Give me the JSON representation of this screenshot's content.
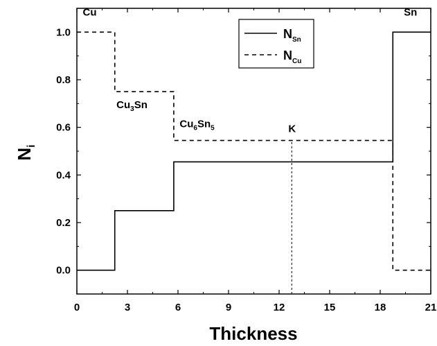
{
  "chart_data": {
    "type": "line",
    "xlabel": "Thickness",
    "ylabel": {
      "main": "N",
      "sub": "i"
    },
    "xlim": [
      0,
      21
    ],
    "ylim": [
      -0.1,
      1.1
    ],
    "xticks": [
      0,
      3,
      6,
      9,
      12,
      15,
      18,
      21
    ],
    "xtick_labels": [
      "0",
      "3",
      "6",
      "9",
      "12",
      "15",
      "18",
      "21"
    ],
    "yticks": [
      0.0,
      0.2,
      0.4,
      0.6,
      0.8,
      1.0
    ],
    "ytick_labels": [
      "0.0",
      "0.2",
      "0.4",
      "0.6",
      "0.8",
      "1.0"
    ],
    "grid": false,
    "legend_position": "top-right",
    "series": [
      {
        "name": {
          "main": "N",
          "sub": "Sn"
        },
        "style": "solid",
        "color": "#000000",
        "x": [
          0,
          2.25,
          2.25,
          5.75,
          5.75,
          18.75,
          18.75,
          21
        ],
        "y": [
          0.0,
          0.0,
          0.25,
          0.25,
          0.455,
          0.455,
          1.0,
          1.0
        ]
      },
      {
        "name": {
          "main": "N",
          "sub": "Cu"
        },
        "style": "dashed",
        "color": "#000000",
        "x": [
          0,
          2.25,
          2.25,
          5.75,
          5.75,
          18.75,
          18.75,
          21
        ],
        "y": [
          1.0,
          1.0,
          0.75,
          0.75,
          0.545,
          0.545,
          0.0,
          0.0
        ]
      }
    ],
    "markers": [
      {
        "label": "K",
        "x": 12.75,
        "y_from": -0.1,
        "y_to": 0.545,
        "style": "dotted"
      }
    ],
    "annotations": [
      {
        "id": "cu",
        "parts": [
          {
            "t": "Cu"
          }
        ],
        "x": 0.35,
        "y": 1.07
      },
      {
        "id": "cu3sn",
        "parts": [
          {
            "t": "Cu"
          },
          {
            "t": "3",
            "sub": true
          },
          {
            "t": "Sn"
          }
        ],
        "x": 2.35,
        "y": 0.68
      },
      {
        "id": "cu6sn5",
        "parts": [
          {
            "t": "Cu"
          },
          {
            "t": "6",
            "sub": true
          },
          {
            "t": "Sn"
          },
          {
            "t": "5",
            "sub": true
          }
        ],
        "x": 6.1,
        "y": 0.6
      },
      {
        "id": "k",
        "parts": [
          {
            "t": "K"
          }
        ],
        "x": 12.55,
        "y": 0.58
      },
      {
        "id": "sn",
        "parts": [
          {
            "t": "Sn"
          }
        ],
        "x": 19.4,
        "y": 1.07
      }
    ]
  }
}
